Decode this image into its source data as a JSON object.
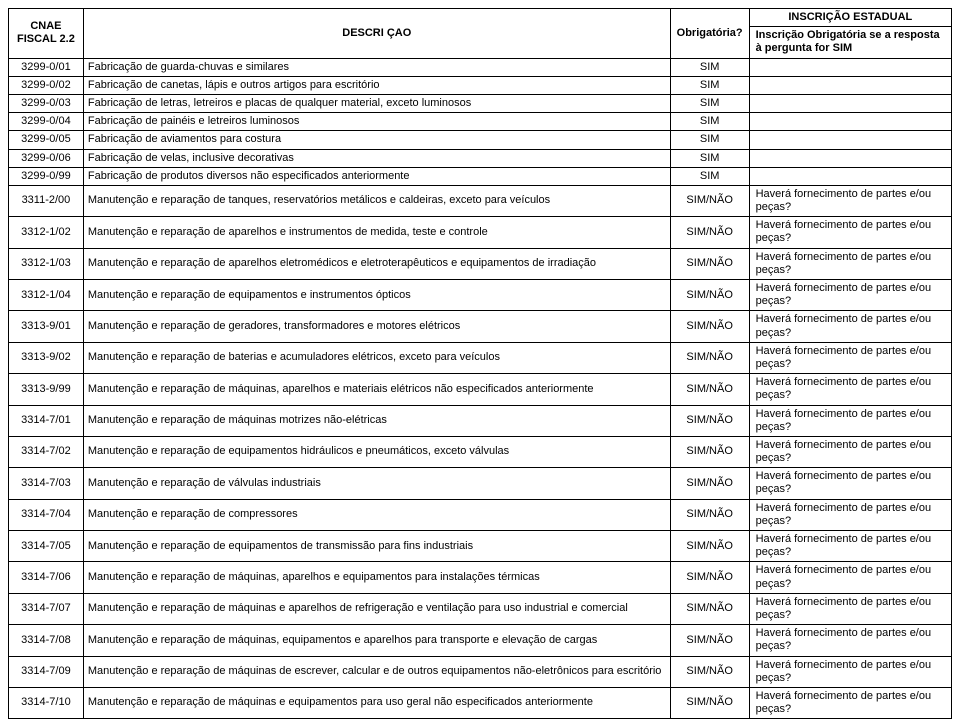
{
  "header": {
    "inscricao_estadual": "INSCRIÇÃO ESTADUAL",
    "cnae_fiscal": "CNAE FISCAL 2.2",
    "descricao": "DESCRI ÇAO",
    "obrigatoria": "Obrigatória?",
    "inscricao_obrig": "Inscrição Obrigatória se a resposta à pergunta for SIM"
  },
  "rows": [
    {
      "code": "3299-0/01",
      "desc": "Fabricação de guarda-chuvas e similares",
      "obr": "SIM",
      "insc": ""
    },
    {
      "code": "3299-0/02",
      "desc": "Fabricação de canetas, lápis e outros artigos para escritório",
      "obr": "SIM",
      "insc": ""
    },
    {
      "code": "3299-0/03",
      "desc": "Fabricação de letras, letreiros e placas de qualquer material, exceto luminosos",
      "obr": "SIM",
      "insc": ""
    },
    {
      "code": "3299-0/04",
      "desc": "Fabricação de painéis e letreiros luminosos",
      "obr": "SIM",
      "insc": ""
    },
    {
      "code": "3299-0/05",
      "desc": "Fabricação de aviamentos para costura",
      "obr": "SIM",
      "insc": ""
    },
    {
      "code": "3299-0/06",
      "desc": "Fabricação de velas, inclusive decorativas",
      "obr": "SIM",
      "insc": ""
    },
    {
      "code": "3299-0/99",
      "desc": "Fabricação de produtos diversos não especificados anteriormente",
      "obr": "SIM",
      "insc": ""
    },
    {
      "code": "3311-2/00",
      "desc": "Manutenção e reparação de tanques, reservatórios metálicos e caldeiras, exceto para veículos",
      "obr": "SIM/NÃO",
      "insc": "Haverá fornecimento de partes e/ou peças?"
    },
    {
      "code": "3312-1/02",
      "desc": "Manutenção e reparação de aparelhos e instrumentos de medida, teste e controle",
      "obr": "SIM/NÃO",
      "insc": "Haverá fornecimento de partes e/ou peças?"
    },
    {
      "code": "3312-1/03",
      "desc": "Manutenção e reparação de aparelhos eletromédicos e eletroterapêuticos e equipamentos de irradiação",
      "obr": "SIM/NÃO",
      "insc": "Haverá fornecimento de partes e/ou peças?"
    },
    {
      "code": "3312-1/04",
      "desc": "Manutenção e reparação de equipamentos e instrumentos ópticos",
      "obr": "SIM/NÃO",
      "insc": "Haverá fornecimento de partes e/ou peças?"
    },
    {
      "code": "3313-9/01",
      "desc": "Manutenção e reparação de geradores, transformadores e motores elétricos",
      "obr": "SIM/NÃO",
      "insc": "Haverá fornecimento de partes e/ou peças?"
    },
    {
      "code": "3313-9/02",
      "desc": "Manutenção e reparação de baterias e acumuladores elétricos, exceto para veículos",
      "obr": "SIM/NÃO",
      "insc": "Haverá fornecimento de partes e/ou peças?"
    },
    {
      "code": "3313-9/99",
      "desc": "Manutenção e reparação de máquinas, aparelhos e materiais elétricos não especificados anteriormente",
      "obr": "SIM/NÃO",
      "insc": "Haverá fornecimento de partes e/ou peças?"
    },
    {
      "code": "3314-7/01",
      "desc": "Manutenção e reparação de máquinas motrizes não-elétricas",
      "obr": "SIM/NÃO",
      "insc": "Haverá fornecimento de partes e/ou peças?"
    },
    {
      "code": "3314-7/02",
      "desc": "Manutenção e reparação de equipamentos hidráulicos e pneumáticos, exceto válvulas",
      "obr": "SIM/NÃO",
      "insc": "Haverá fornecimento de partes e/ou peças?"
    },
    {
      "code": "3314-7/03",
      "desc": "Manutenção e reparação de válvulas industriais",
      "obr": "SIM/NÃO",
      "insc": "Haverá fornecimento de partes e/ou peças?"
    },
    {
      "code": "3314-7/04",
      "desc": "Manutenção e reparação de compressores",
      "obr": "SIM/NÃO",
      "insc": "Haverá fornecimento de partes e/ou peças?"
    },
    {
      "code": "3314-7/05",
      "desc": "Manutenção e reparação de equipamentos de transmissão para fins industriais",
      "obr": "SIM/NÃO",
      "insc": "Haverá fornecimento de partes e/ou peças?"
    },
    {
      "code": "3314-7/06",
      "desc": "Manutenção e reparação de máquinas, aparelhos e equipamentos para instalações térmicas",
      "obr": "SIM/NÃO",
      "insc": "Haverá fornecimento de partes e/ou peças?"
    },
    {
      "code": "3314-7/07",
      "desc": "Manutenção e reparação de máquinas e aparelhos de refrigeração e ventilação para uso industrial e comercial",
      "obr": "SIM/NÃO",
      "insc": "Haverá fornecimento de partes e/ou peças?"
    },
    {
      "code": "3314-7/08",
      "desc": "Manutenção e reparação de máquinas, equipamentos e aparelhos para transporte e elevação de cargas",
      "obr": "SIM/NÃO",
      "insc": "Haverá fornecimento de partes e/ou peças?"
    },
    {
      "code": "3314-7/09",
      "desc": "Manutenção e reparação de máquinas de escrever, calcular e de outros equipamentos não-eletrônicos para escritório",
      "obr": "SIM/NÃO",
      "insc": "Haverá fornecimento de partes e/ou peças?"
    },
    {
      "code": "3314-7/10",
      "desc": "Manutenção e reparação de máquinas e equipamentos para uso geral não especificados anteriormente",
      "obr": "SIM/NÃO",
      "insc": "Haverá fornecimento de partes e/ou peças?"
    }
  ]
}
